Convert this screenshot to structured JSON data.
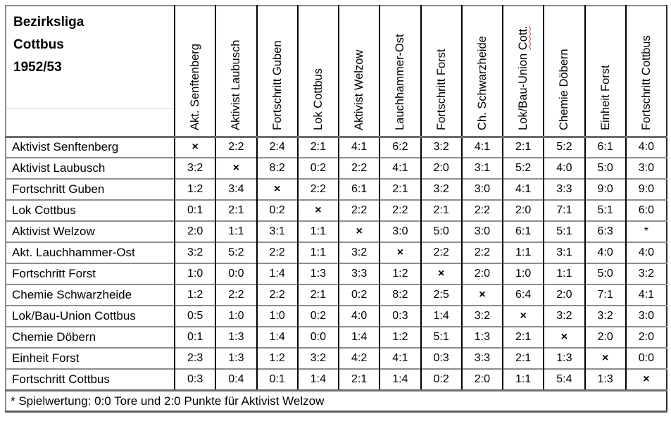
{
  "title": {
    "lines": [
      "Bezirksliga",
      "Cottbus",
      "1952/53"
    ]
  },
  "matrix": {
    "cross_symbol": "×",
    "forfeit_symbol": "*",
    "columns": [
      {
        "label": "Akt. Senftenberg",
        "wavy": ""
      },
      {
        "label": "Aktivist Laubusch",
        "wavy": ""
      },
      {
        "label": "Fortschritt Guben",
        "wavy": ""
      },
      {
        "label": "Lok Cottbus",
        "wavy": ""
      },
      {
        "label": "Aktivist Welzow",
        "wavy": ""
      },
      {
        "label": "Lauchhammer-Ost",
        "wavy": ""
      },
      {
        "label": "Fortschritt Forst",
        "wavy": ""
      },
      {
        "label": "Ch. Schwarzheide",
        "wavy": ""
      },
      {
        "label": "Lok/Bau-Union ",
        "wavy": "Cott."
      },
      {
        "label": "Chemie Döbern",
        "wavy": ""
      },
      {
        "label": "Einheit Forst",
        "wavy": ""
      },
      {
        "label": "Fortschritt Cottbus",
        "wavy": ""
      }
    ],
    "rows": [
      {
        "team": "Aktivist Senftenberg",
        "results": [
          "×",
          "2:2",
          "2:4",
          "2:1",
          "4:1",
          "6:2",
          "3:2",
          "4:1",
          "2:1",
          "5:2",
          "6:1",
          "4:0"
        ]
      },
      {
        "team": "Aktivist Laubusch",
        "results": [
          "3:2",
          "×",
          "8:2",
          "0:2",
          "2:2",
          "4:1",
          "2:0",
          "3:1",
          "5:2",
          "4:0",
          "5:0",
          "3:0"
        ]
      },
      {
        "team": "Fortschritt Guben",
        "results": [
          "1:2",
          "3:4",
          "×",
          "2:2",
          "6:1",
          "2:1",
          "3:2",
          "3:0",
          "4:1",
          "3:3",
          "9:0",
          "9:0"
        ]
      },
      {
        "team": "Lok Cottbus",
        "results": [
          "0:1",
          "2:1",
          "0:2",
          "×",
          "2:2",
          "2:2",
          "2:1",
          "2:2",
          "2:0",
          "7:1",
          "5:1",
          "6:0"
        ]
      },
      {
        "team": "Aktivist Welzow",
        "results": [
          "2:0",
          "1:1",
          "3:1",
          "1:1",
          "×",
          "3:0",
          "5:0",
          "3:0",
          "6:1",
          "5:1",
          "6:3",
          "*"
        ]
      },
      {
        "team": "Akt. Lauchhammer-Ost",
        "results": [
          "3:2",
          "5:2",
          "2:2",
          "1:1",
          "3:2",
          "×",
          "2:2",
          "2:2",
          "1:1",
          "3:1",
          "4:0",
          "4:0"
        ]
      },
      {
        "team": "Fortschritt Forst",
        "results": [
          "1:0",
          "0:0",
          "1:4",
          "1:3",
          "3:3",
          "1:2",
          "×",
          "2:0",
          "1:0",
          "1:1",
          "5:0",
          "3:2"
        ]
      },
      {
        "team": "Chemie Schwarzheide",
        "results": [
          "1:2",
          "2:2",
          "2:2",
          "2:1",
          "0:2",
          "8:2",
          "2:5",
          "×",
          "6:4",
          "2:0",
          "7:1",
          "4:1"
        ]
      },
      {
        "team": "Lok/Bau-Union Cottbus",
        "results": [
          "0:5",
          "1:0",
          "1:0",
          "0:2",
          "4:0",
          "0:3",
          "1:4",
          "3:2",
          "×",
          "3:2",
          "3:2",
          "3:0"
        ]
      },
      {
        "team": "Chemie Döbern",
        "results": [
          "0:1",
          "1:3",
          "1:4",
          "0:0",
          "1:4",
          "1:2",
          "5:1",
          "1:3",
          "2:1",
          "×",
          "2:0",
          "2:0"
        ]
      },
      {
        "team": "Einheit Forst",
        "results": [
          "2:3",
          "1:3",
          "1:2",
          "3:2",
          "4:2",
          "4:1",
          "0:3",
          "3:3",
          "2:1",
          "1:3",
          "×",
          "0:0"
        ]
      },
      {
        "team": "Fortschritt Cottbus",
        "results": [
          "0:3",
          "0:4",
          "0:1",
          "1:4",
          "2:1",
          "1:4",
          "0:2",
          "2:0",
          "1:1",
          "5:4",
          "1:3",
          "×"
        ]
      }
    ]
  },
  "footnote": "* Spielwertung: 0:0 Tore und 2:0 Punkte für Aktivist Welzow",
  "colors": {
    "grid_horizontal": "#8d8d8d",
    "grid_vertical": "#000000",
    "header_rule_heavy": "#6d6d6d",
    "title_faint_rule": "#dcdcdc",
    "spellcheck_wavy": "#c0504d",
    "text": "#000000",
    "background": "#ffffff"
  }
}
